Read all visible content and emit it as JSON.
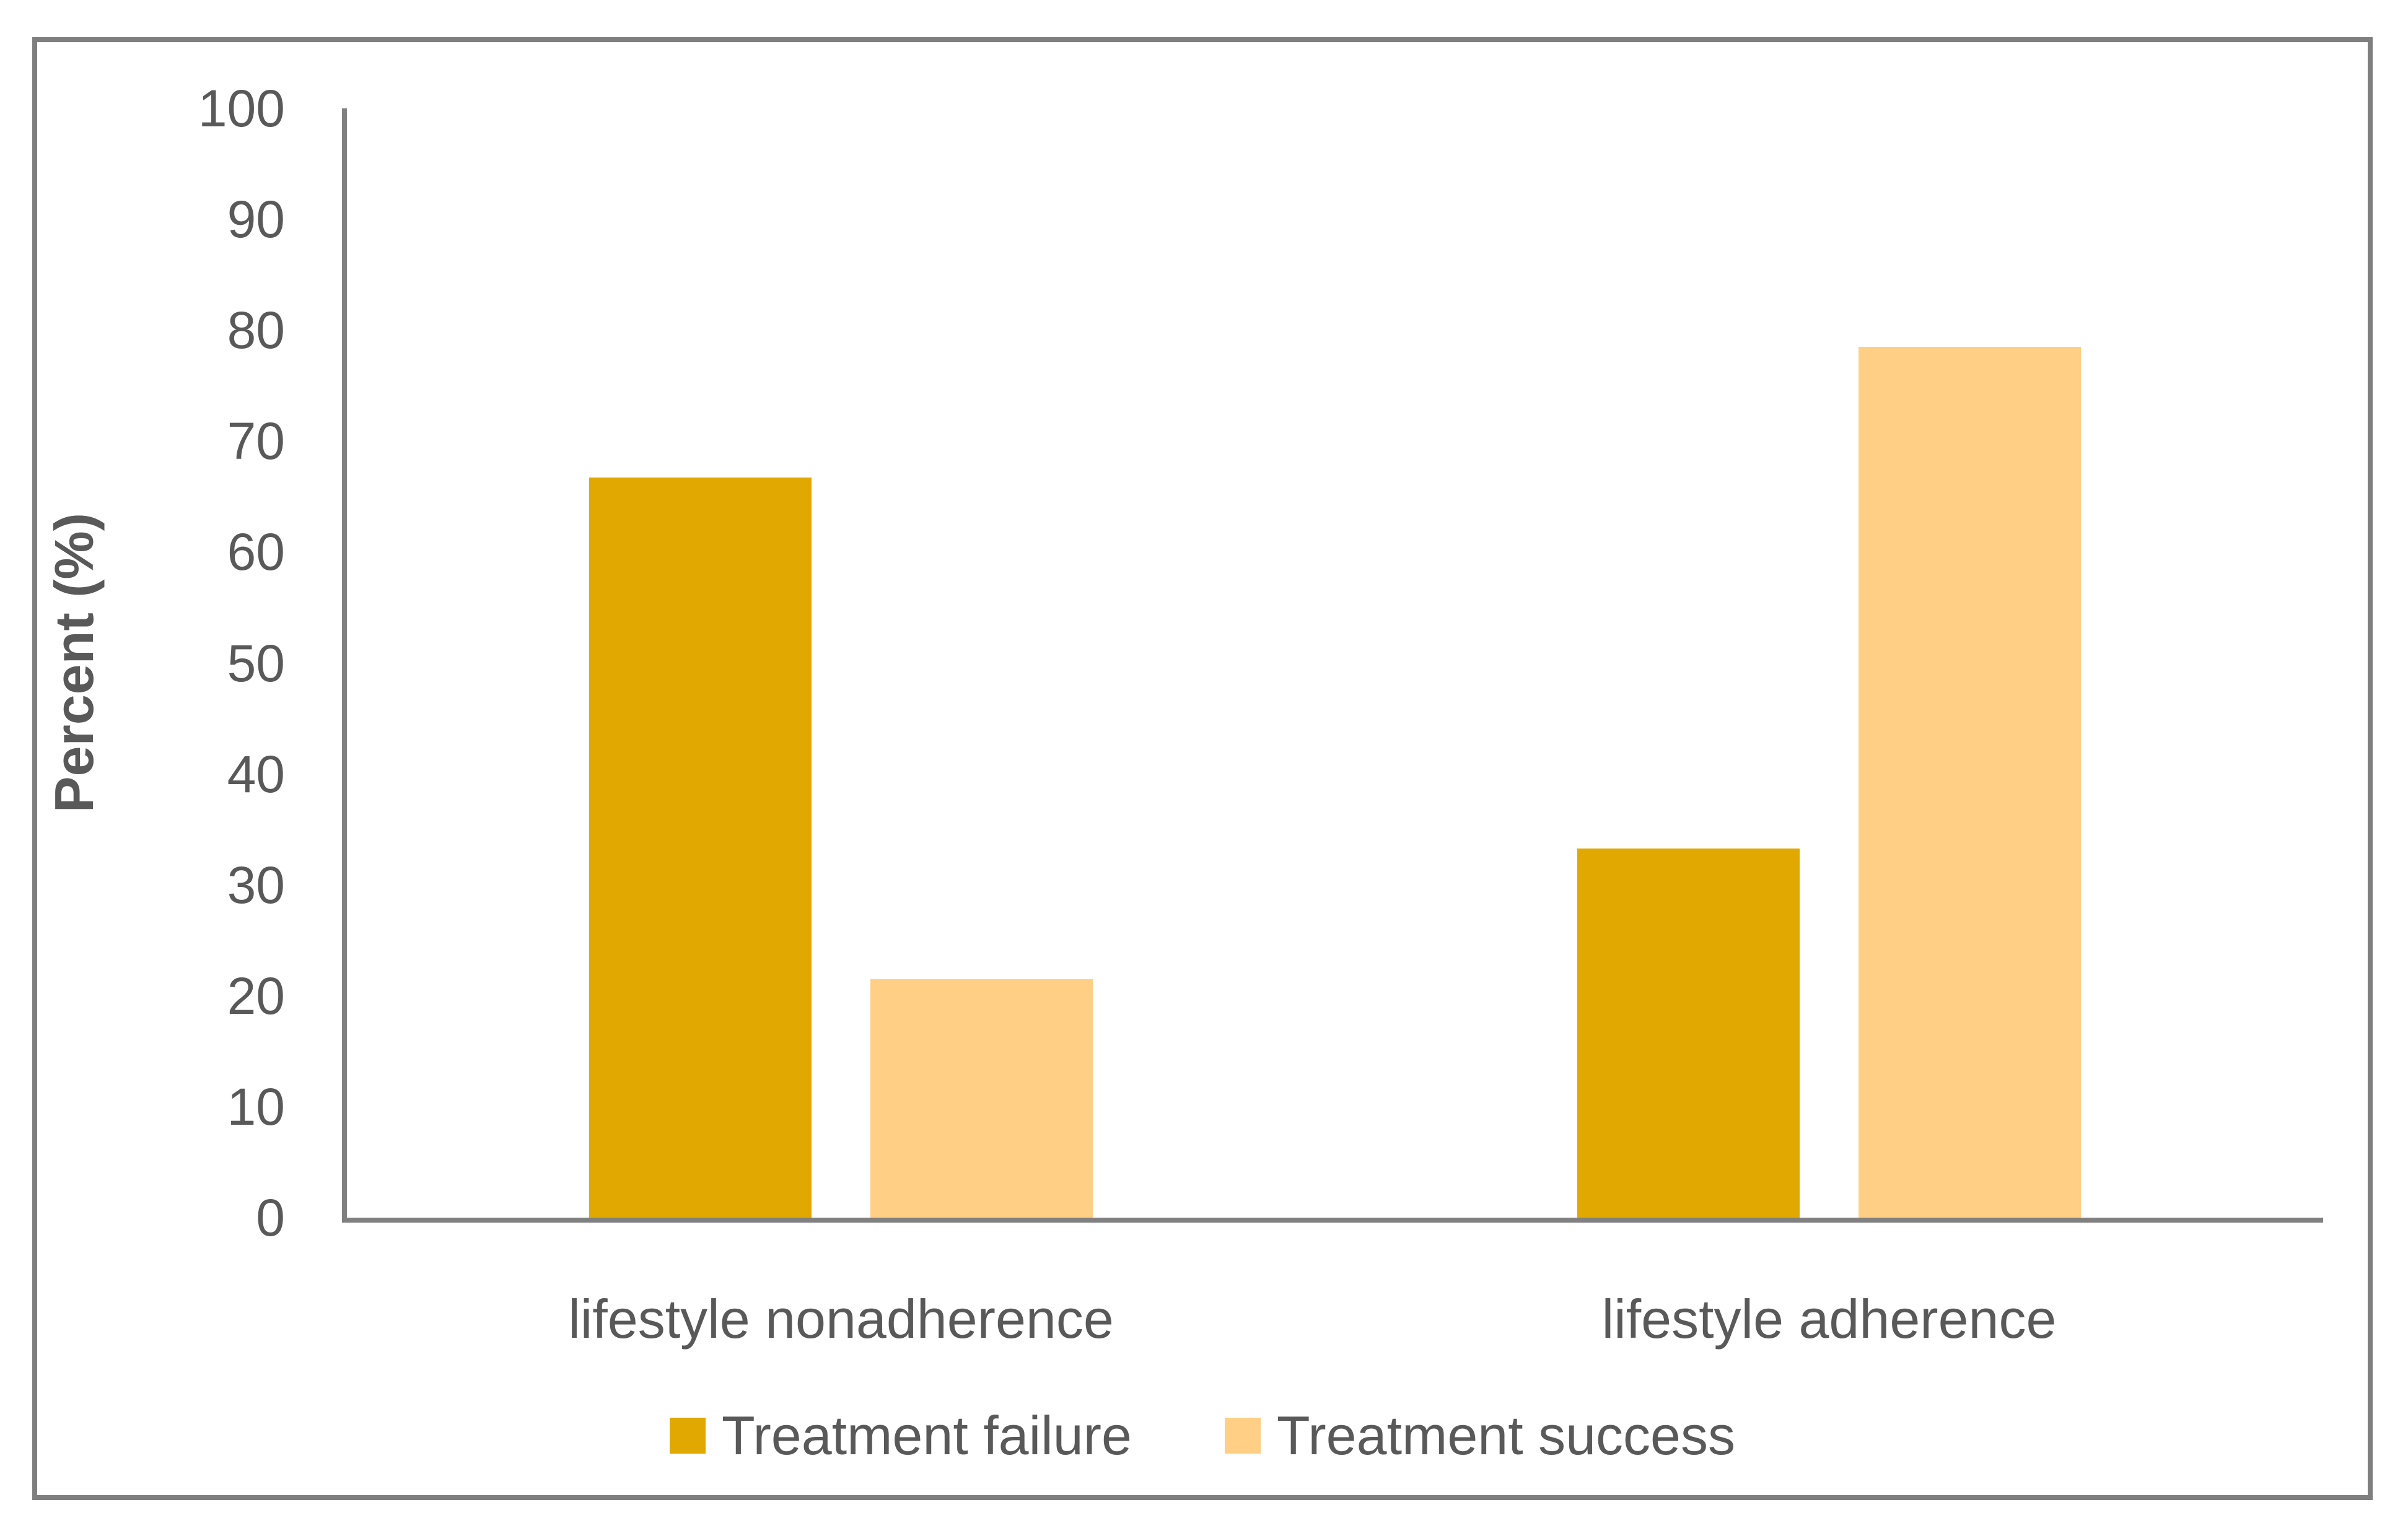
{
  "figure": {
    "background": "#FFFFFF",
    "border_color": "#7F7F7F",
    "axis_color": "#808080",
    "text_color": "#595959"
  },
  "chart_data": {
    "type": "bar",
    "title": "",
    "categories": [
      "lifestyle nonadherence",
      "lifestyle adherence"
    ],
    "series": [
      {
        "name": "Treatment failure",
        "color": "#E0A800",
        "values": [
          66.7,
          33.3
        ]
      },
      {
        "name": "Treatment success",
        "color": "#FFCF86",
        "values": [
          21.5,
          78.5
        ]
      }
    ],
    "xlabel": "",
    "ylabel": "Percent (%)",
    "ylim": [
      0,
      100
    ],
    "ytick_step": 10,
    "grid": false,
    "legend_position": "bottom"
  }
}
